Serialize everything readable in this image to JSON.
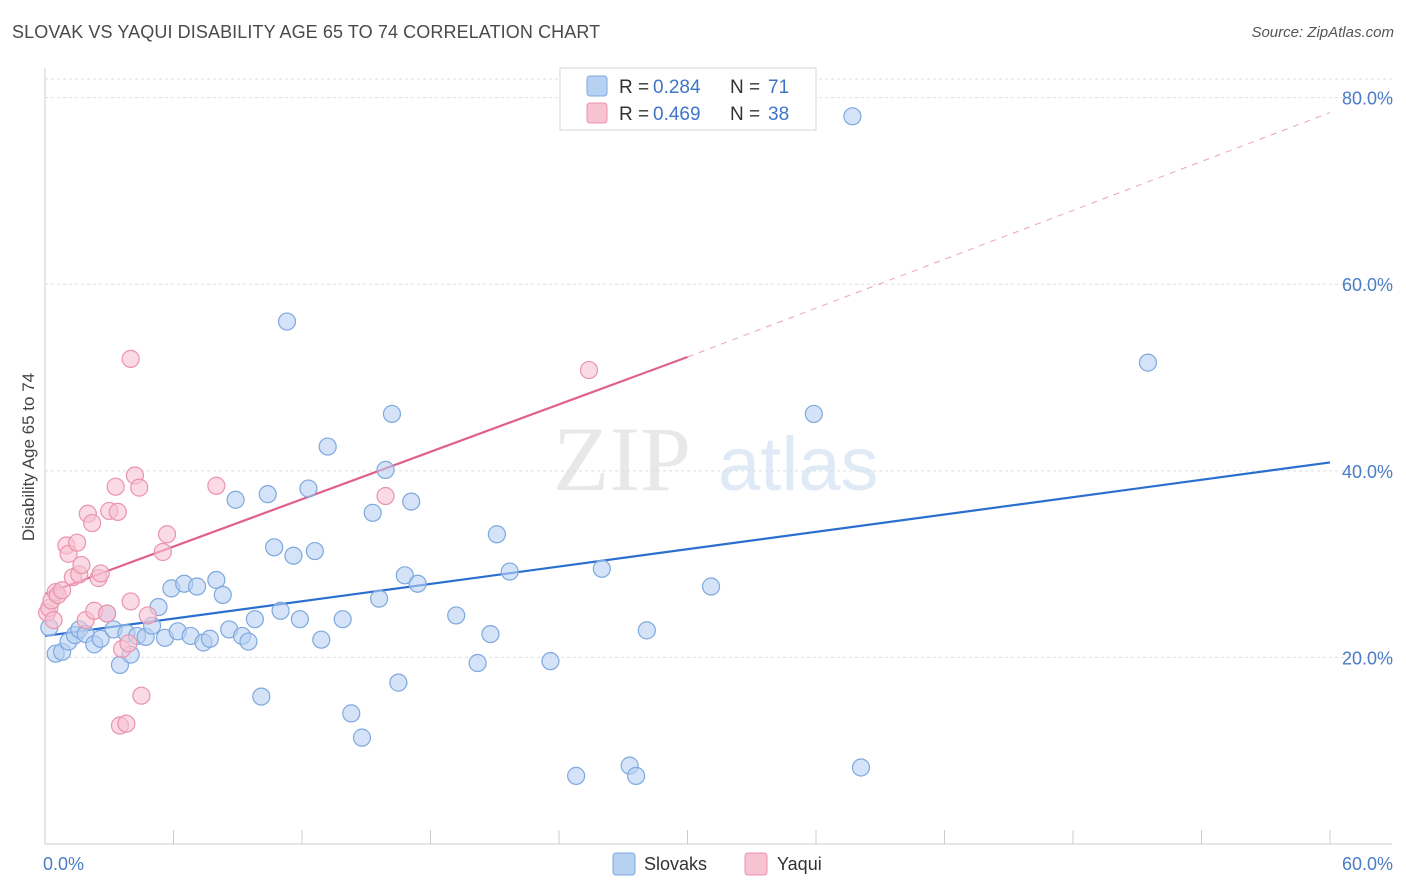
{
  "title": "SLOVAK VS YAQUI DISABILITY AGE 65 TO 74 CORRELATION CHART",
  "source": "Source: ZipAtlas.com",
  "watermark": {
    "zip": "ZIP",
    "atlas": "atlas"
  },
  "legend": {
    "r_label": "R =",
    "n_label": "N =",
    "items": [
      {
        "name": "Slovaks",
        "r": "0.284",
        "n": "71"
      },
      {
        "name": "Yaqui",
        "r": "0.469",
        "n": "38"
      }
    ]
  },
  "colors": {
    "slovaks_fill": "#b7d1f2",
    "slovaks_stroke": "#7ea8de",
    "slovaks_line": "#2a6fd0",
    "yaqui_fill": "#f7c2d2",
    "yaqui_stroke": "#eb93ad",
    "yaqui_line": "#e0608c",
    "grid": "#dddddd",
    "axis_label": "#4a7cc7"
  },
  "chart_data": {
    "type": "scatter",
    "title": "SLOVAK VS YAQUI DISABILITY AGE 65 TO 74 CORRELATION CHART",
    "xlabel": "",
    "ylabel": "Disability Age 65 to 74",
    "xlim": [
      0,
      60
    ],
    "ylim": [
      0,
      82
    ],
    "x_tick_labels": [
      "0.0%",
      "60.0%"
    ],
    "y_ticks": [
      20,
      40,
      60,
      80
    ],
    "y_tick_labels": [
      "20.0%",
      "40.0%",
      "60.0%",
      "80.0%"
    ],
    "series": [
      {
        "name": "Slovaks",
        "r": 0.284,
        "n": 71,
        "trend": {
          "x0": 0,
          "y0": 22.3,
          "x1": 60,
          "y1": 40.9,
          "dashed_to": null
        },
        "points": [
          [
            0.2,
            23.2
          ],
          [
            0.5,
            20.4
          ],
          [
            0.8,
            20.6
          ],
          [
            1.1,
            21.7
          ],
          [
            1.4,
            22.4
          ],
          [
            1.6,
            23.0
          ],
          [
            1.9,
            22.5
          ],
          [
            2.3,
            21.4
          ],
          [
            2.6,
            22.0
          ],
          [
            2.9,
            24.7
          ],
          [
            3.2,
            23.0
          ],
          [
            3.5,
            19.2
          ],
          [
            3.8,
            22.6
          ],
          [
            4.0,
            20.3
          ],
          [
            4.3,
            22.3
          ],
          [
            4.7,
            22.2
          ],
          [
            5.0,
            23.4
          ],
          [
            5.3,
            25.4
          ],
          [
            5.6,
            22.1
          ],
          [
            5.9,
            27.4
          ],
          [
            6.2,
            22.8
          ],
          [
            6.5,
            27.9
          ],
          [
            6.8,
            22.3
          ],
          [
            7.1,
            27.6
          ],
          [
            7.4,
            21.6
          ],
          [
            7.7,
            22.0
          ],
          [
            8.0,
            28.3
          ],
          [
            8.3,
            26.7
          ],
          [
            8.6,
            23.0
          ],
          [
            8.9,
            36.9
          ],
          [
            9.2,
            22.3
          ],
          [
            9.5,
            21.7
          ],
          [
            9.8,
            24.1
          ],
          [
            10.1,
            15.8
          ],
          [
            10.4,
            37.5
          ],
          [
            10.7,
            31.8
          ],
          [
            11.0,
            25.0
          ],
          [
            11.3,
            56.0
          ],
          [
            11.6,
            30.9
          ],
          [
            11.9,
            24.1
          ],
          [
            12.3,
            38.1
          ],
          [
            12.6,
            31.4
          ],
          [
            12.9,
            21.9
          ],
          [
            13.2,
            42.6
          ],
          [
            13.9,
            24.1
          ],
          [
            14.3,
            14.0
          ],
          [
            14.8,
            11.4
          ],
          [
            15.3,
            35.5
          ],
          [
            15.6,
            26.3
          ],
          [
            15.9,
            40.1
          ],
          [
            16.2,
            46.1
          ],
          [
            16.5,
            17.3
          ],
          [
            16.8,
            28.8
          ],
          [
            17.1,
            36.7
          ],
          [
            17.4,
            27.9
          ],
          [
            19.2,
            24.5
          ],
          [
            20.2,
            19.4
          ],
          [
            20.8,
            22.5
          ],
          [
            21.1,
            33.2
          ],
          [
            21.7,
            29.2
          ],
          [
            23.6,
            19.6
          ],
          [
            24.8,
            7.3
          ],
          [
            26.0,
            29.5
          ],
          [
            27.3,
            8.4
          ],
          [
            27.6,
            7.3
          ],
          [
            28.1,
            22.9
          ],
          [
            31.1,
            27.6
          ],
          [
            35.9,
            46.1
          ],
          [
            37.7,
            78.0
          ],
          [
            38.1,
            8.2
          ],
          [
            51.5,
            51.6
          ]
        ]
      },
      {
        "name": "Yaqui",
        "r": 0.469,
        "n": 38,
        "trend": {
          "x0": 0,
          "y0": 26.8,
          "x1": 30,
          "y1": 52.2,
          "dashed_to": {
            "x": 60,
            "y": 78.4
          }
        },
        "points": [
          [
            0.1,
            24.8
          ],
          [
            0.2,
            25.3
          ],
          [
            0.3,
            26.1
          ],
          [
            0.4,
            24.0
          ],
          [
            0.5,
            27.0
          ],
          [
            0.6,
            26.7
          ],
          [
            0.8,
            27.2
          ],
          [
            1.0,
            32.0
          ],
          [
            1.1,
            31.1
          ],
          [
            1.3,
            28.6
          ],
          [
            1.5,
            32.3
          ],
          [
            1.6,
            28.9
          ],
          [
            1.7,
            29.9
          ],
          [
            1.9,
            24.0
          ],
          [
            2.0,
            35.4
          ],
          [
            2.2,
            34.4
          ],
          [
            2.3,
            25.0
          ],
          [
            2.5,
            28.5
          ],
          [
            2.6,
            29.0
          ],
          [
            2.9,
            24.7
          ],
          [
            3.0,
            35.7
          ],
          [
            3.3,
            38.3
          ],
          [
            3.4,
            35.6
          ],
          [
            3.5,
            12.7
          ],
          [
            3.6,
            20.9
          ],
          [
            3.8,
            12.9
          ],
          [
            3.9,
            21.5
          ],
          [
            4.0,
            26.0
          ],
          [
            4.0,
            52.0
          ],
          [
            4.2,
            39.5
          ],
          [
            4.4,
            38.2
          ],
          [
            4.5,
            15.9
          ],
          [
            4.8,
            24.5
          ],
          [
            5.5,
            31.3
          ],
          [
            5.7,
            33.2
          ],
          [
            8.0,
            38.4
          ],
          [
            15.9,
            37.3
          ],
          [
            25.4,
            50.8
          ]
        ]
      }
    ]
  }
}
